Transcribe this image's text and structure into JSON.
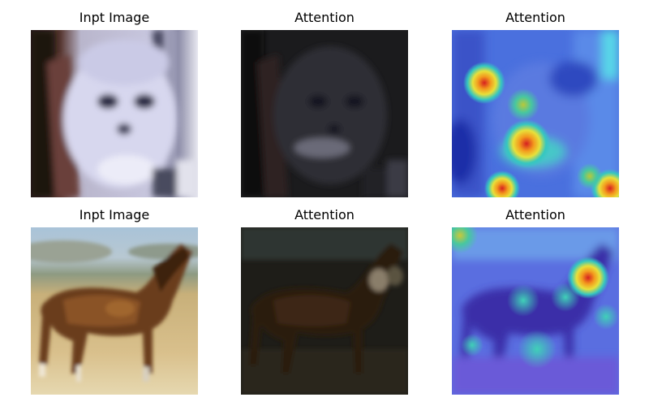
{
  "rows": [
    {
      "subject": "cat",
      "panels": [
        {
          "title": "Inpt Image",
          "kind": "input"
        },
        {
          "title": "Attention",
          "kind": "masked"
        },
        {
          "title": "Attention",
          "kind": "heatmap"
        }
      ]
    },
    {
      "subject": "horse",
      "panels": [
        {
          "title": "Inpt Image",
          "kind": "input"
        },
        {
          "title": "Attention",
          "kind": "masked"
        },
        {
          "title": "Attention",
          "kind": "heatmap"
        }
      ]
    }
  ],
  "colors": {
    "background": "#ffffff",
    "heatmap_low": "#3a5bd9",
    "heatmap_mid": "#35c7c0",
    "heatmap_high": "#d62020"
  }
}
